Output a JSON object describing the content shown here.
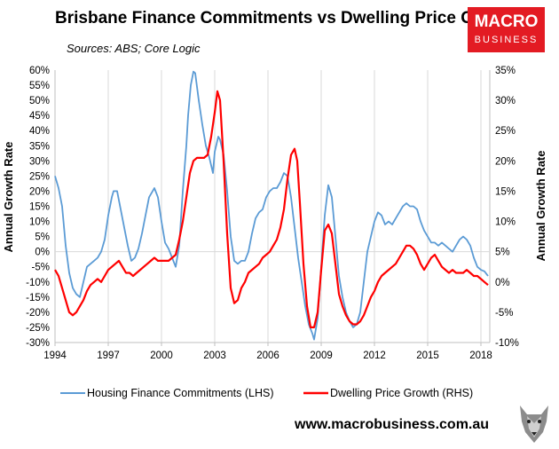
{
  "header": {
    "title": "Brisbane Finance Commitments vs Dwelling Price Growth",
    "subtitle": "Sources: ABS; Core Logic"
  },
  "logo": {
    "line1": "MACRO",
    "line2": "BUSINESS"
  },
  "footer": {
    "website": "www.macrobusiness.com.au"
  },
  "colors": {
    "finance": "#5b9bd5",
    "price": "#ff0000",
    "grid": "#d9d9d9"
  },
  "chart_data": {
    "type": "line",
    "title": "Brisbane Finance Commitments vs Dwelling Price Growth",
    "xlabel": "",
    "ylabel": "Annual Growth Rate",
    "y2label": "Annual Growth Rate",
    "xlim": [
      1994,
      2018.5
    ],
    "ylim": [
      -30,
      60
    ],
    "y2lim": [
      -10,
      35
    ],
    "x_ticks": [
      1994,
      1997,
      2000,
      2003,
      2006,
      2009,
      2012,
      2015,
      2018
    ],
    "x_tick_labels": [
      "1994",
      "1997",
      "2000",
      "2003",
      "2006",
      "2009",
      "2012",
      "2015",
      "2018"
    ],
    "y_ticks": [
      -30,
      -25,
      -20,
      -15,
      -10,
      -5,
      0,
      5,
      10,
      15,
      20,
      25,
      30,
      35,
      40,
      45,
      50,
      55,
      60
    ],
    "y_tick_labels": [
      "-30%",
      "-25%",
      "-20%",
      "-15%",
      "-10%",
      "-5%",
      "0%",
      "5%",
      "10%",
      "15%",
      "20%",
      "25%",
      "30%",
      "35%",
      "40%",
      "45%",
      "50%",
      "55%",
      "60%"
    ],
    "y2_ticks": [
      -10,
      -5,
      0,
      5,
      10,
      15,
      20,
      25,
      30,
      35
    ],
    "y2_tick_labels": [
      "-10%",
      "-5%",
      "0%",
      "5%",
      "10%",
      "15%",
      "20%",
      "25%",
      "30%",
      "35%"
    ],
    "grid": "vertical",
    "legend_position": "bottom",
    "series": [
      {
        "name": "Housing Finance Commitments (LHS)",
        "axis": "left",
        "color": "#5b9bd5",
        "points": [
          [
            1994.0,
            25
          ],
          [
            1994.2,
            21
          ],
          [
            1994.4,
            15
          ],
          [
            1994.6,
            2
          ],
          [
            1994.8,
            -7
          ],
          [
            1995.0,
            -12
          ],
          [
            1995.2,
            -14
          ],
          [
            1995.4,
            -15
          ],
          [
            1995.6,
            -10
          ],
          [
            1995.8,
            -5
          ],
          [
            1996.0,
            -4
          ],
          [
            1996.2,
            -3
          ],
          [
            1996.4,
            -2
          ],
          [
            1996.6,
            0
          ],
          [
            1996.8,
            4
          ],
          [
            1997.0,
            12
          ],
          [
            1997.2,
            18
          ],
          [
            1997.3,
            20
          ],
          [
            1997.5,
            20
          ],
          [
            1997.7,
            14
          ],
          [
            1997.9,
            8
          ],
          [
            1998.1,
            2
          ],
          [
            1998.3,
            -3
          ],
          [
            1998.5,
            -2
          ],
          [
            1998.7,
            1
          ],
          [
            1998.9,
            6
          ],
          [
            1999.1,
            12
          ],
          [
            1999.3,
            18
          ],
          [
            1999.5,
            20
          ],
          [
            1999.6,
            21
          ],
          [
            1999.8,
            18
          ],
          [
            2000.0,
            10
          ],
          [
            2000.2,
            3
          ],
          [
            2000.4,
            1
          ],
          [
            2000.6,
            -2
          ],
          [
            2000.8,
            -5
          ],
          [
            2001.0,
            2
          ],
          [
            2001.2,
            20
          ],
          [
            2001.4,
            35
          ],
          [
            2001.5,
            45
          ],
          [
            2001.65,
            55
          ],
          [
            2001.8,
            59.5
          ],
          [
            2001.9,
            59
          ],
          [
            2002.1,
            50
          ],
          [
            2002.3,
            42
          ],
          [
            2002.5,
            35
          ],
          [
            2002.7,
            31
          ],
          [
            2002.9,
            26
          ],
          [
            2003.0,
            33
          ],
          [
            2003.2,
            38
          ],
          [
            2003.3,
            37
          ],
          [
            2003.5,
            32
          ],
          [
            2003.7,
            20
          ],
          [
            2003.9,
            5
          ],
          [
            2004.1,
            -3
          ],
          [
            2004.3,
            -4
          ],
          [
            2004.5,
            -3
          ],
          [
            2004.7,
            -3
          ],
          [
            2004.9,
            0
          ],
          [
            2005.1,
            6
          ],
          [
            2005.3,
            11
          ],
          [
            2005.5,
            13
          ],
          [
            2005.7,
            14
          ],
          [
            2005.9,
            18
          ],
          [
            2006.1,
            20
          ],
          [
            2006.3,
            21
          ],
          [
            2006.5,
            21
          ],
          [
            2006.7,
            23
          ],
          [
            2006.9,
            26
          ],
          [
            2007.1,
            25
          ],
          [
            2007.3,
            18
          ],
          [
            2007.5,
            8
          ],
          [
            2007.7,
            -2
          ],
          [
            2007.9,
            -10
          ],
          [
            2008.1,
            -18
          ],
          [
            2008.3,
            -24
          ],
          [
            2008.5,
            -27
          ],
          [
            2008.6,
            -29
          ],
          [
            2008.8,
            -22
          ],
          [
            2009.0,
            -5
          ],
          [
            2009.2,
            12
          ],
          [
            2009.4,
            22
          ],
          [
            2009.6,
            18
          ],
          [
            2009.8,
            5
          ],
          [
            2010.0,
            -8
          ],
          [
            2010.2,
            -15
          ],
          [
            2010.4,
            -20
          ],
          [
            2010.6,
            -23
          ],
          [
            2010.8,
            -25
          ],
          [
            2011.0,
            -24
          ],
          [
            2011.2,
            -20
          ],
          [
            2011.4,
            -10
          ],
          [
            2011.6,
            0
          ],
          [
            2011.8,
            5
          ],
          [
            2012.0,
            10
          ],
          [
            2012.2,
            13
          ],
          [
            2012.4,
            12
          ],
          [
            2012.6,
            9
          ],
          [
            2012.8,
            10
          ],
          [
            2013.0,
            9
          ],
          [
            2013.2,
            11
          ],
          [
            2013.4,
            13
          ],
          [
            2013.6,
            15
          ],
          [
            2013.8,
            16
          ],
          [
            2014.0,
            15
          ],
          [
            2014.2,
            15
          ],
          [
            2014.4,
            14
          ],
          [
            2014.6,
            10
          ],
          [
            2014.8,
            7
          ],
          [
            2015.0,
            5
          ],
          [
            2015.2,
            3
          ],
          [
            2015.4,
            3
          ],
          [
            2015.6,
            2
          ],
          [
            2015.8,
            3
          ],
          [
            2016.0,
            2
          ],
          [
            2016.2,
            1
          ],
          [
            2016.4,
            0
          ],
          [
            2016.6,
            2
          ],
          [
            2016.8,
            4
          ],
          [
            2017.0,
            5
          ],
          [
            2017.2,
            4
          ],
          [
            2017.4,
            2
          ],
          [
            2017.6,
            -2
          ],
          [
            2017.8,
            -5
          ],
          [
            2018.0,
            -6
          ],
          [
            2018.2,
            -6.5
          ],
          [
            2018.4,
            -8
          ]
        ]
      },
      {
        "name": "Dwelling Price Growth (RHS)",
        "axis": "right",
        "color": "#ff0000",
        "points": [
          [
            1994.0,
            2
          ],
          [
            1994.2,
            1
          ],
          [
            1994.4,
            -1
          ],
          [
            1994.6,
            -3
          ],
          [
            1994.8,
            -5
          ],
          [
            1995.0,
            -5.5
          ],
          [
            1995.2,
            -5
          ],
          [
            1995.4,
            -4
          ],
          [
            1995.6,
            -3
          ],
          [
            1995.8,
            -1.5
          ],
          [
            1996.0,
            -0.5
          ],
          [
            1996.2,
            0
          ],
          [
            1996.4,
            0.5
          ],
          [
            1996.6,
            0
          ],
          [
            1996.8,
            1
          ],
          [
            1997.0,
            2
          ],
          [
            1997.2,
            2.5
          ],
          [
            1997.4,
            3
          ],
          [
            1997.6,
            3.5
          ],
          [
            1997.8,
            2.5
          ],
          [
            1998.0,
            1.5
          ],
          [
            1998.2,
            1.5
          ],
          [
            1998.4,
            1
          ],
          [
            1998.6,
            1.5
          ],
          [
            1998.8,
            2
          ],
          [
            1999.0,
            2.5
          ],
          [
            1999.2,
            3
          ],
          [
            1999.4,
            3.5
          ],
          [
            1999.6,
            4
          ],
          [
            1999.8,
            3.5
          ],
          [
            2000.0,
            3.5
          ],
          [
            2000.2,
            3.5
          ],
          [
            2000.4,
            3.5
          ],
          [
            2000.6,
            4
          ],
          [
            2000.8,
            4.5
          ],
          [
            2001.0,
            7
          ],
          [
            2001.2,
            10
          ],
          [
            2001.4,
            14
          ],
          [
            2001.6,
            18
          ],
          [
            2001.8,
            20
          ],
          [
            2002.0,
            20.5
          ],
          [
            2002.2,
            20.5
          ],
          [
            2002.4,
            20.5
          ],
          [
            2002.6,
            21
          ],
          [
            2002.8,
            24
          ],
          [
            2003.0,
            28
          ],
          [
            2003.15,
            31.5
          ],
          [
            2003.3,
            30
          ],
          [
            2003.5,
            20
          ],
          [
            2003.7,
            8
          ],
          [
            2003.9,
            -1
          ],
          [
            2004.1,
            -3.5
          ],
          [
            2004.3,
            -3
          ],
          [
            2004.5,
            -1
          ],
          [
            2004.7,
            0
          ],
          [
            2004.9,
            1.5
          ],
          [
            2005.1,
            2
          ],
          [
            2005.3,
            2.5
          ],
          [
            2005.5,
            3
          ],
          [
            2005.7,
            4
          ],
          [
            2005.9,
            4.5
          ],
          [
            2006.1,
            5
          ],
          [
            2006.3,
            6
          ],
          [
            2006.5,
            7
          ],
          [
            2006.7,
            9
          ],
          [
            2006.9,
            12
          ],
          [
            2007.1,
            17
          ],
          [
            2007.3,
            21
          ],
          [
            2007.5,
            22
          ],
          [
            2007.65,
            20
          ],
          [
            2007.8,
            13
          ],
          [
            2008.0,
            3
          ],
          [
            2008.2,
            -4
          ],
          [
            2008.4,
            -7.5
          ],
          [
            2008.6,
            -7.5
          ],
          [
            2008.8,
            -5
          ],
          [
            2009.0,
            2
          ],
          [
            2009.2,
            8.5
          ],
          [
            2009.4,
            9.5
          ],
          [
            2009.6,
            8
          ],
          [
            2009.8,
            3
          ],
          [
            2010.0,
            -2
          ],
          [
            2010.2,
            -4
          ],
          [
            2010.4,
            -5.5
          ],
          [
            2010.6,
            -6.5
          ],
          [
            2010.8,
            -7
          ],
          [
            2011.0,
            -7
          ],
          [
            2011.2,
            -6.5
          ],
          [
            2011.4,
            -5.5
          ],
          [
            2011.6,
            -4
          ],
          [
            2011.8,
            -2.5
          ],
          [
            2012.0,
            -1.5
          ],
          [
            2012.2,
            0
          ],
          [
            2012.4,
            1
          ],
          [
            2012.6,
            1.5
          ],
          [
            2012.8,
            2
          ],
          [
            2013.0,
            2.5
          ],
          [
            2013.2,
            3
          ],
          [
            2013.4,
            4
          ],
          [
            2013.6,
            5
          ],
          [
            2013.8,
            6
          ],
          [
            2014.0,
            6
          ],
          [
            2014.2,
            5.5
          ],
          [
            2014.4,
            4.5
          ],
          [
            2014.6,
            3
          ],
          [
            2014.8,
            2
          ],
          [
            2015.0,
            3
          ],
          [
            2015.2,
            4
          ],
          [
            2015.4,
            4.5
          ],
          [
            2015.6,
            3.5
          ],
          [
            2015.8,
            2.5
          ],
          [
            2016.0,
            2
          ],
          [
            2016.2,
            1.5
          ],
          [
            2016.4,
            2
          ],
          [
            2016.6,
            1.5
          ],
          [
            2016.8,
            1.5
          ],
          [
            2017.0,
            1.5
          ],
          [
            2017.2,
            2
          ],
          [
            2017.4,
            1.5
          ],
          [
            2017.6,
            1
          ],
          [
            2017.8,
            1
          ],
          [
            2018.0,
            0.5
          ],
          [
            2018.2,
            0
          ],
          [
            2018.4,
            -0.5
          ]
        ]
      }
    ]
  }
}
